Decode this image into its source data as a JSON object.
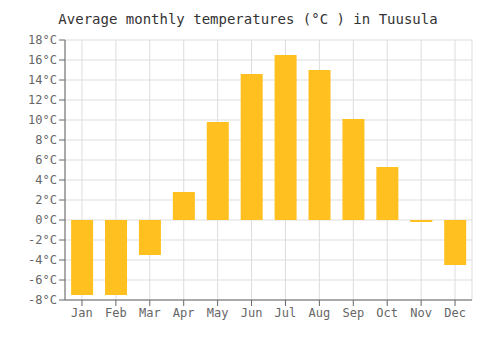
{
  "chart_data": {
    "type": "bar",
    "title": "Average monthly temperatures (°C ) in Tuusula",
    "categories": [
      "Jan",
      "Feb",
      "Mar",
      "Apr",
      "May",
      "Jun",
      "Jul",
      "Aug",
      "Sep",
      "Oct",
      "Nov",
      "Dec"
    ],
    "values": [
      -7.5,
      -7.5,
      -3.5,
      2.8,
      9.8,
      14.6,
      16.5,
      15.0,
      10.1,
      5.3,
      -0.2,
      -4.5
    ],
    "color": "#FFC020",
    "ylim": [
      -8,
      18
    ],
    "yticks": [
      {
        "value": -8,
        "label": "-8°C"
      },
      {
        "value": -6,
        "label": "-6°C"
      },
      {
        "value": -4,
        "label": "-4°C"
      },
      {
        "value": -2,
        "label": "-2°C"
      },
      {
        "value": 0,
        "label": "0°C"
      },
      {
        "value": 2,
        "label": "2°C"
      },
      {
        "value": 4,
        "label": "4°C"
      },
      {
        "value": 6,
        "label": "6°C"
      },
      {
        "value": 8,
        "label": "8°C"
      },
      {
        "value": 10,
        "label": "10°C"
      },
      {
        "value": 12,
        "label": "12°C"
      },
      {
        "value": 14,
        "label": "14°C"
      },
      {
        "value": 16,
        "label": "16°C"
      },
      {
        "value": 18,
        "label": "18°C"
      }
    ],
    "grid": true
  }
}
